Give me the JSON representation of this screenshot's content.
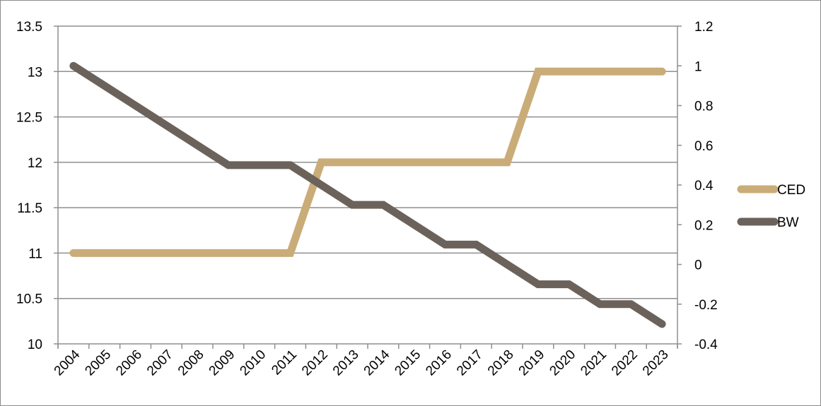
{
  "chart_data": {
    "type": "line",
    "title": "",
    "xlabel": "",
    "ylabel": "",
    "y2label": "",
    "categories": [
      "2004",
      "2005",
      "2006",
      "2007",
      "2008",
      "2009",
      "2010",
      "2011",
      "2012",
      "2013",
      "2014",
      "2015",
      "2016",
      "2017",
      "2018",
      "2019",
      "2020",
      "2021",
      "2022",
      "2023"
    ],
    "ylim": [
      10,
      13.5
    ],
    "y2lim": [
      -0.4,
      1.2
    ],
    "y_ticks": [
      "10",
      "10.5",
      "11",
      "11.5",
      "12",
      "12.5",
      "13",
      "13.5"
    ],
    "y2_ticks": [
      "-0.4",
      "-0.2",
      "0",
      "0.2",
      "0.4",
      "0.6",
      "0.8",
      "1",
      "1.2"
    ],
    "grid": true,
    "legend_position": "right",
    "series": [
      {
        "name": "CED",
        "axis": "left",
        "color": "#c9ac78",
        "values": [
          11,
          11,
          11,
          11,
          11,
          11,
          11,
          11,
          12,
          12,
          12,
          12,
          12,
          12,
          12,
          13,
          13,
          13,
          13,
          13
        ]
      },
      {
        "name": "BW",
        "axis": "right",
        "color": "#6b625b",
        "values": [
          1.0,
          0.9,
          0.8,
          0.7,
          0.6,
          0.5,
          0.5,
          0.5,
          0.4,
          0.3,
          0.3,
          0.2,
          0.1,
          0.1,
          0.0,
          -0.1,
          -0.1,
          -0.2,
          -0.2,
          -0.3
        ]
      }
    ]
  }
}
